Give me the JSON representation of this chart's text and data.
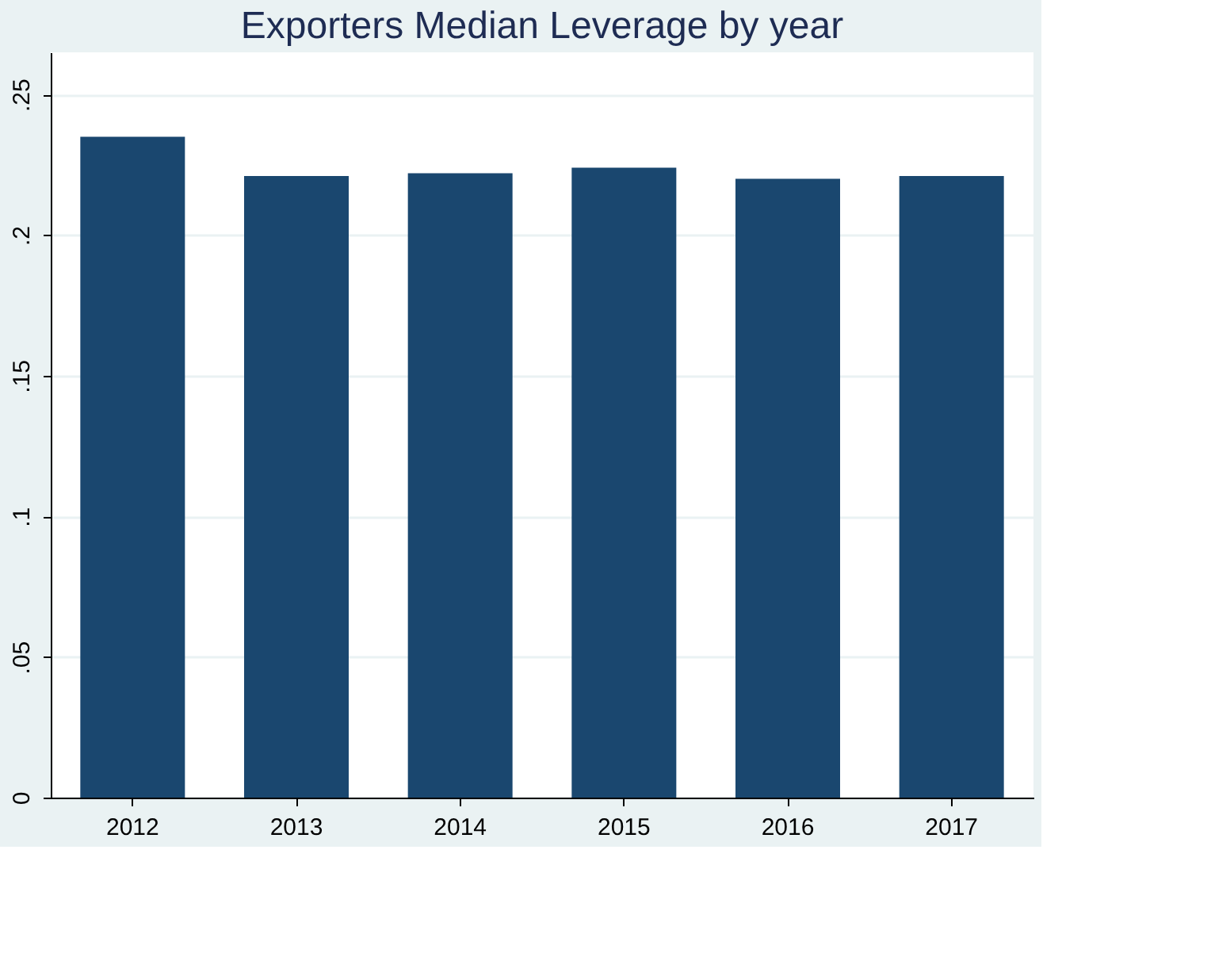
{
  "chart_data": {
    "type": "bar",
    "title": "Exporters Median Leverage by year",
    "categories": [
      "2012",
      "2013",
      "2014",
      "2015",
      "2016",
      "2017"
    ],
    "values": [
      0.235,
      0.221,
      0.222,
      0.224,
      0.22,
      0.221
    ],
    "color": "#1a476f",
    "ylim": [
      0,
      0.265
    ],
    "yticks": [
      0,
      {
        "value": 0.05,
        "label": ".05"
      },
      {
        "value": 0.1,
        "label": ".1"
      },
      {
        "value": 0.15,
        "label": ".15"
      },
      {
        "value": 0.2,
        "label": ".2"
      },
      {
        "value": 0.25,
        "label": ".25"
      }
    ],
    "grid": "y"
  }
}
